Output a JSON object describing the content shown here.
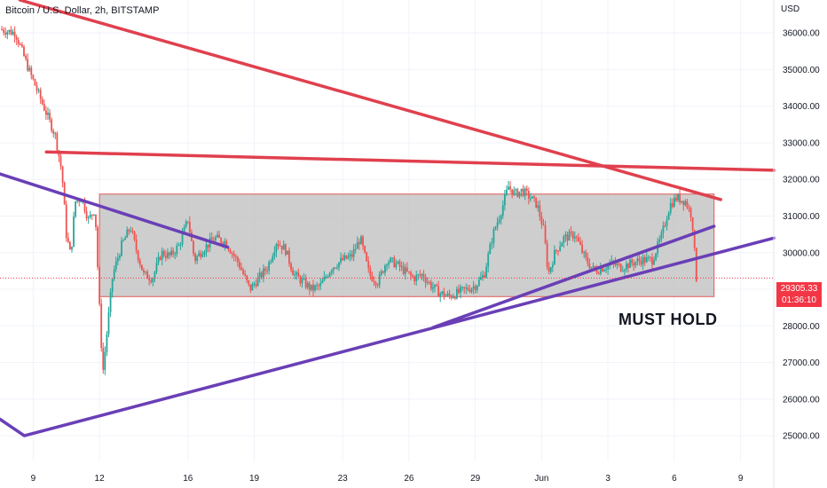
{
  "header": {
    "title": "Bitcoin / U.S. Dollar, 2h, BITSTAMP",
    "currency": "USD"
  },
  "price_tag": {
    "price": "29305.33",
    "countdown": "01:36:10"
  },
  "annotation": "MUST HOLD",
  "colors": {
    "up": "#26a69a",
    "down": "#ef5350",
    "resistance": "#e0404e",
    "support": "#6a3fb6",
    "range_fill": "#bdbdbd",
    "range_stroke": "#e05a5a"
  },
  "chart_data": {
    "type": "candlestick",
    "title": "Bitcoin / U.S. Dollar, 2h, BITSTAMP",
    "ylabel": "USD",
    "ylim": [
      24300,
      36900
    ],
    "y_ticks": [
      25000,
      26000,
      27000,
      28000,
      29000,
      30000,
      31000,
      32000,
      33000,
      34000,
      35000,
      36000
    ],
    "y_tick_labels": [
      "25000.00",
      "26000.00",
      "27000.00",
      "28000.00",
      "29000.00",
      "30000.00",
      "31000.00",
      "32000.00",
      "33000.00",
      "34000.00",
      "35000.00",
      "36000.00"
    ],
    "x_ticks": [
      "9",
      "12",
      "16",
      "19",
      "23",
      "26",
      "29",
      "Jun",
      "3",
      "6",
      "9"
    ],
    "x_tick_days": [
      9,
      12,
      16,
      19,
      23,
      26,
      29,
      32,
      35,
      38,
      41
    ],
    "x_range_days": [
      7.5,
      42.5
    ],
    "last_price": 29305.33,
    "path": [
      [
        7.5,
        36100
      ],
      [
        8.2,
        36000
      ],
      [
        8.8,
        35000
      ],
      [
        9.2,
        34400
      ],
      [
        9.6,
        33800
      ],
      [
        10.0,
        33200
      ],
      [
        10.3,
        32200
      ],
      [
        10.5,
        30500
      ],
      [
        10.7,
        29900
      ],
      [
        10.9,
        31400
      ],
      [
        11.2,
        31500
      ],
      [
        11.5,
        30900
      ],
      [
        11.8,
        31200
      ],
      [
        12.0,
        28500
      ],
      [
        12.15,
        26700
      ],
      [
        12.3,
        27600
      ],
      [
        12.6,
        29400
      ],
      [
        13.0,
        30200
      ],
      [
        13.4,
        30700
      ],
      [
        13.7,
        30000
      ],
      [
        14.0,
        29400
      ],
      [
        14.4,
        29300
      ],
      [
        14.8,
        30000
      ],
      [
        15.2,
        29900
      ],
      [
        15.6,
        30200
      ],
      [
        16.0,
        30900
      ],
      [
        16.3,
        29800
      ],
      [
        16.7,
        30100
      ],
      [
        17.2,
        30400
      ],
      [
        17.7,
        30300
      ],
      [
        18.3,
        29700
      ],
      [
        18.8,
        29000
      ],
      [
        19.2,
        29300
      ],
      [
        19.6,
        29600
      ],
      [
        20.0,
        30300
      ],
      [
        20.4,
        30100
      ],
      [
        20.8,
        29400
      ],
      [
        21.2,
        29200
      ],
      [
        21.6,
        29000
      ],
      [
        22.0,
        29100
      ],
      [
        22.5,
        29600
      ],
      [
        23.0,
        29800
      ],
      [
        23.4,
        29900
      ],
      [
        23.8,
        30400
      ],
      [
        24.2,
        29400
      ],
      [
        24.6,
        29200
      ],
      [
        25.0,
        29800
      ],
      [
        25.4,
        29700
      ],
      [
        25.8,
        29500
      ],
      [
        26.2,
        29300
      ],
      [
        26.6,
        29400
      ],
      [
        27.0,
        29100
      ],
      [
        27.4,
        28900
      ],
      [
        27.8,
        28800
      ],
      [
        28.2,
        28900
      ],
      [
        28.6,
        29000
      ],
      [
        29.0,
        29100
      ],
      [
        29.4,
        29400
      ],
      [
        29.8,
        30500
      ],
      [
        30.2,
        31200
      ],
      [
        30.5,
        31800
      ],
      [
        30.8,
        31600
      ],
      [
        31.1,
        31700
      ],
      [
        31.5,
        31500
      ],
      [
        31.8,
        31300
      ],
      [
        32.1,
        30600
      ],
      [
        32.3,
        29400
      ],
      [
        32.6,
        30000
      ],
      [
        33.0,
        30400
      ],
      [
        33.5,
        30500
      ],
      [
        34.0,
        29800
      ],
      [
        34.4,
        29500
      ],
      [
        34.8,
        29600
      ],
      [
        35.2,
        29700
      ],
      [
        35.6,
        29600
      ],
      [
        36.0,
        29700
      ],
      [
        36.5,
        29800
      ],
      [
        37.0,
        29800
      ],
      [
        37.4,
        30400
      ],
      [
        37.8,
        31300
      ],
      [
        38.1,
        31500
      ],
      [
        38.5,
        31400
      ],
      [
        38.8,
        31000
      ],
      [
        39.0,
        29305
      ]
    ],
    "lines": [
      {
        "name": "upper-trendline",
        "color": "resistance",
        "width": 3.5,
        "points": [
          [
            8.4,
            36900
          ],
          [
            40.1,
            31450
          ]
        ]
      },
      {
        "name": "horizontal-resistance",
        "color": "resistance",
        "width": 3.5,
        "points": [
          [
            9.6,
            32750
          ],
          [
            42.5,
            32250
          ]
        ]
      },
      {
        "name": "left-descending-line",
        "color": "support",
        "width": 3.5,
        "points": [
          [
            7.5,
            32150
          ],
          [
            17.8,
            30150
          ]
        ]
      },
      {
        "name": "long-support-line",
        "color": "support",
        "width": 3.5,
        "points": [
          [
            7.5,
            25450
          ],
          [
            8.6,
            25000
          ],
          [
            42.5,
            30400
          ]
        ]
      },
      {
        "name": "short-support-line",
        "color": "support",
        "width": 3.5,
        "points": [
          [
            27.1,
            27960
          ],
          [
            39.8,
            30720
          ]
        ]
      }
    ],
    "range_box": {
      "x0": 12.0,
      "x1": 39.8,
      "y0": 28800,
      "y1": 31600
    }
  }
}
